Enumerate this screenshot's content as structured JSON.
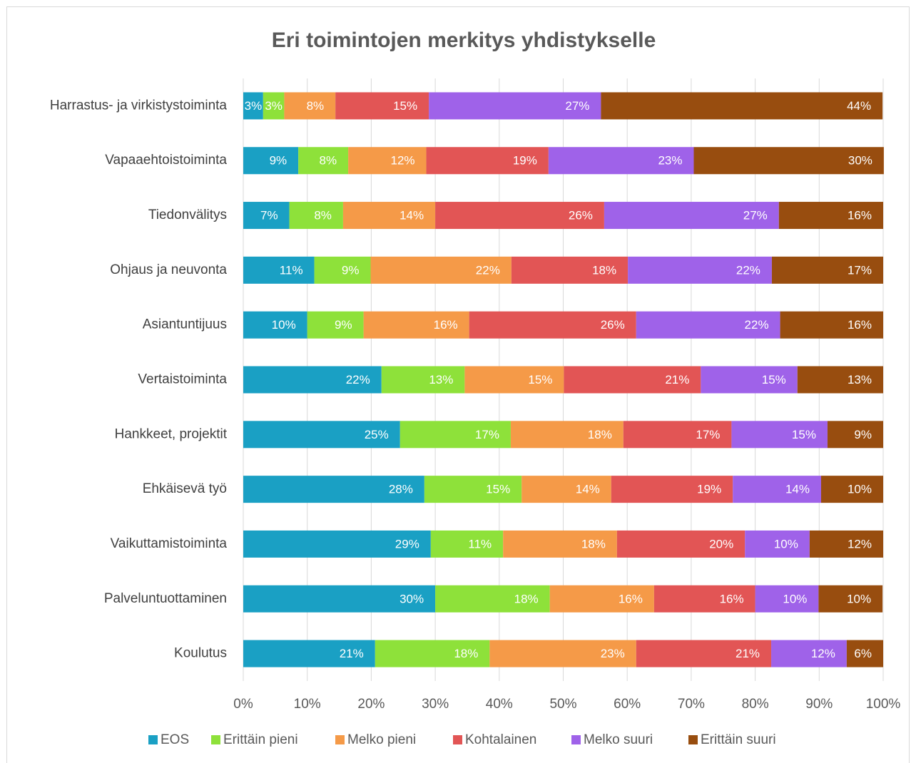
{
  "chart_data": {
    "type": "stacked-barh",
    "title": "Eri toimintojen merkitys yhdistykselle",
    "categories": [
      "Harrastus- ja virkistystoiminta",
      "Vapaaehtoistoiminta",
      "Tiedonvälitys",
      "Ohjaus ja neuvonta",
      "Asiantuntijuus",
      "Vertaistoiminta",
      "Hankkeet, projektit",
      "Ehkäisevä työ",
      "Vaikuttamistoiminta",
      "Palveluntuottaminen",
      "Koulutus"
    ],
    "series": [
      {
        "name": "EOS",
        "color": "#1aa0c4",
        "values": [
          3.1,
          8.6,
          7.2,
          11.1,
          10.0,
          21.6,
          24.5,
          28.3,
          29.3,
          30.0,
          20.6
        ],
        "value_labels": [
          "3%",
          "9%",
          "7%",
          "11%",
          "10%",
          "22%",
          "25%",
          "28%",
          "29%",
          "30%",
          "21%"
        ]
      },
      {
        "name": "Erittäin pieni",
        "color": "#8ee13a",
        "values": [
          3.3,
          7.8,
          8.4,
          8.8,
          8.8,
          13.0,
          17.3,
          15.2,
          11.3,
          17.9,
          17.9
        ],
        "value_labels": [
          "3%",
          "8%",
          "8%",
          "9%",
          "9%",
          "13%",
          "17%",
          "15%",
          "11%",
          "18%",
          "18%"
        ]
      },
      {
        "name": "Melko pieni",
        "color": "#f59a48",
        "values": [
          8.0,
          12.2,
          14.4,
          22.0,
          16.5,
          15.5,
          17.6,
          14.0,
          17.8,
          16.3,
          22.9
        ],
        "value_labels": [
          "8%",
          "12%",
          "14%",
          "22%",
          "16%",
          "15%",
          "18%",
          "14%",
          "18%",
          "16%",
          "23%"
        ]
      },
      {
        "name": "Kohtalainen",
        "color": "#e25555",
        "values": [
          14.6,
          19.1,
          26.4,
          18.2,
          26.1,
          21.4,
          16.9,
          19.0,
          20.0,
          15.8,
          21.1
        ],
        "value_labels": [
          "15%",
          "19%",
          "26%",
          "18%",
          "26%",
          "21%",
          "17%",
          "19%",
          "20%",
          "16%",
          "21%"
        ]
      },
      {
        "name": "Melko suuri",
        "color": "#9f62e9",
        "values": [
          26.9,
          22.7,
          27.3,
          22.5,
          22.5,
          15.1,
          15.0,
          13.8,
          10.1,
          9.9,
          11.8
        ],
        "value_labels": [
          "27%",
          "23%",
          "27%",
          "22%",
          "22%",
          "15%",
          "15%",
          "14%",
          "10%",
          "10%",
          "12%"
        ]
      },
      {
        "name": "Erittäin suuri",
        "color": "#984d0f",
        "values": [
          44.0,
          29.7,
          16.3,
          17.4,
          16.1,
          13.4,
          8.7,
          9.7,
          11.5,
          10.0,
          5.7
        ],
        "value_labels": [
          "44%",
          "30%",
          "16%",
          "17%",
          "16%",
          "13%",
          "9%",
          "10%",
          "12%",
          "10%",
          "6%"
        ]
      }
    ],
    "xlim": [
      0,
      100
    ],
    "xticks": [
      {
        "value": 0,
        "label": "0%"
      },
      {
        "value": 10,
        "label": "10%"
      },
      {
        "value": 20,
        "label": "20%"
      },
      {
        "value": 30,
        "label": "30%"
      },
      {
        "value": 40,
        "label": "40%"
      },
      {
        "value": 50,
        "label": "50%"
      },
      {
        "value": 60,
        "label": "60%"
      },
      {
        "value": 70,
        "label": "70%"
      },
      {
        "value": 80,
        "label": "80%"
      },
      {
        "value": 90,
        "label": "90%"
      },
      {
        "value": 100,
        "label": "100%"
      }
    ],
    "grid": true,
    "legend": "bottom"
  }
}
